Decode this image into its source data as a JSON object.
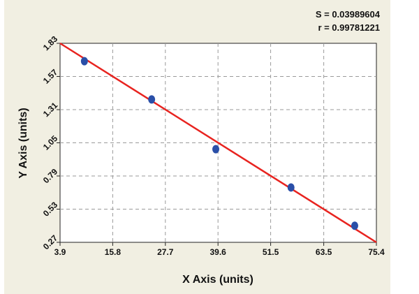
{
  "stats": {
    "s_line": "S = 0.03989604",
    "r_line": "r = 0.99781221"
  },
  "chart_data": {
    "type": "scatter",
    "title": "",
    "xlabel": "X Axis (units)",
    "ylabel": "Y Axis (units)",
    "xlim": [
      3.9,
      75.4
    ],
    "ylim": [
      0.27,
      1.83
    ],
    "x_ticks": [
      "3.9",
      "15.8",
      "27.7",
      "39.6",
      "51.5",
      "63.5",
      "75.4"
    ],
    "y_ticks": [
      "1.83",
      "1.57",
      "1.31",
      "1.05",
      "0.79",
      "0.53",
      "0.27"
    ],
    "grid": true,
    "series": [
      {
        "points": [
          {
            "x": 9.4,
            "y": 1.69
          },
          {
            "x": 24.6,
            "y": 1.39
          },
          {
            "x": 39.1,
            "y": 1.0
          },
          {
            "x": 56.1,
            "y": 0.7
          },
          {
            "x": 70.5,
            "y": 0.4
          }
        ],
        "color": "#2a4fa8"
      }
    ],
    "fit_line": {
      "x": [
        3.9,
        75.4
      ],
      "y": [
        1.83,
        0.27
      ],
      "color": "#e8231f"
    }
  }
}
